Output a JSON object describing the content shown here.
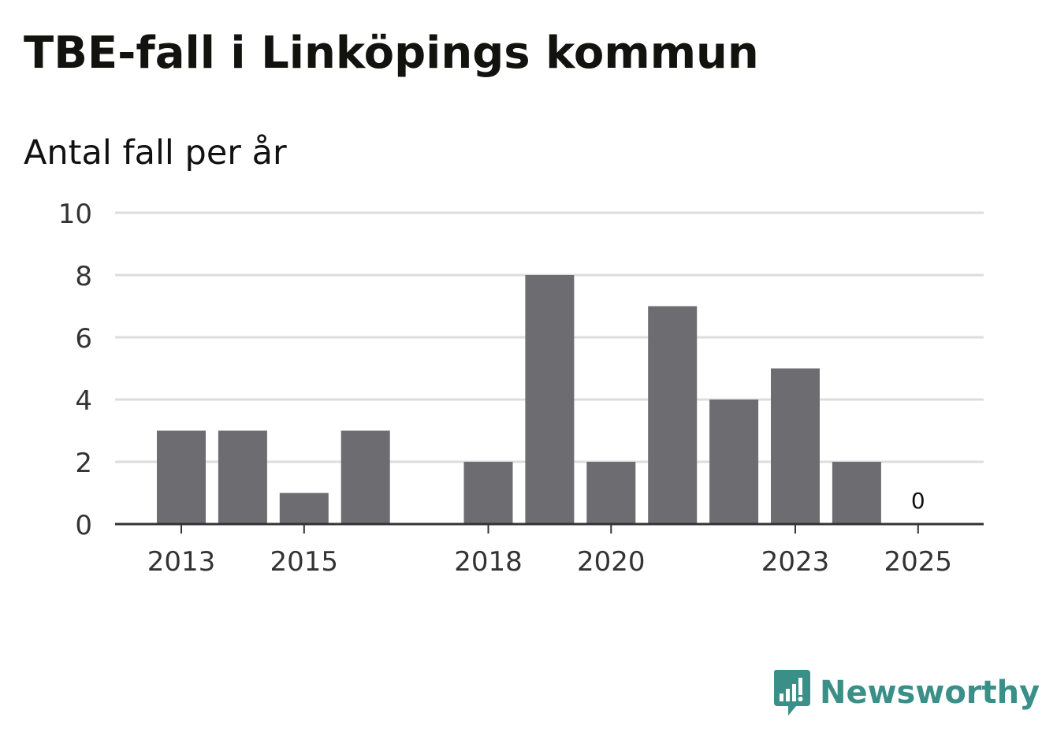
{
  "title": "TBE-fall i Linköpings kommun",
  "subtitle": "Antal fall per år",
  "brand": {
    "name": "Newsworthy",
    "color": "#3a8f88"
  },
  "colors": {
    "bar": "#6d6c71",
    "grid": "#dddddd",
    "axis": "#333333",
    "tick_text": "#333333"
  },
  "chart_data": {
    "type": "bar",
    "title": "TBE-fall i Linköpings kommun",
    "subtitle": "Antal fall per år",
    "categories": [
      "2013",
      "2014",
      "2015",
      "2016",
      "2017",
      "2018",
      "2019",
      "2020",
      "2021",
      "2022",
      "2023",
      "2024",
      "2025"
    ],
    "values": [
      3,
      3,
      1,
      3,
      null,
      2,
      8,
      2,
      7,
      4,
      5,
      2,
      0
    ],
    "x_tick_labels": [
      "2013",
      "2015",
      "2018",
      "2020",
      "2023",
      "2025"
    ],
    "y_ticks": [
      "0",
      "2",
      "4",
      "6",
      "8",
      "10"
    ],
    "ylim": [
      0,
      10
    ],
    "data_labels": [
      {
        "category": "2025",
        "label": "0"
      }
    ],
    "xlabel": "",
    "ylabel": "",
    "grid": true,
    "legend": "none"
  }
}
